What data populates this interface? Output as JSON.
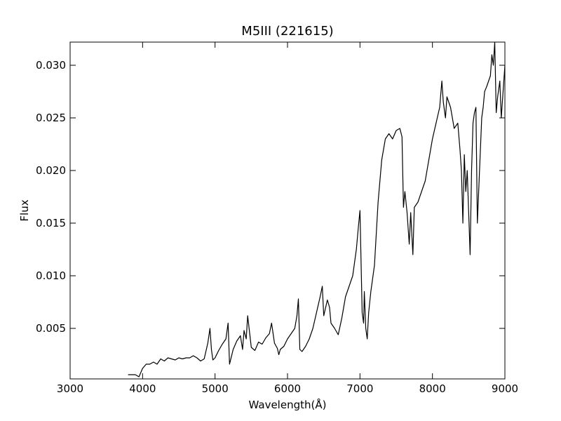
{
  "chart_data": {
    "type": "line",
    "title": "M5III (221615)",
    "xlabel": "Wavelength(Å)",
    "ylabel": "Flux",
    "xlim": [
      3000,
      9000
    ],
    "ylim": [
      0.0002,
      0.0322
    ],
    "x_ticks": [
      3000,
      4000,
      5000,
      6000,
      7000,
      8000,
      9000
    ],
    "y_ticks": [
      0.005,
      0.01,
      0.015,
      0.02,
      0.025,
      0.03
    ],
    "x_tick_labels": [
      "3000",
      "4000",
      "5000",
      "6000",
      "7000",
      "8000",
      "9000"
    ],
    "y_tick_labels": [
      "0.005",
      "0.010",
      "0.015",
      "0.020",
      "0.025",
      "0.030"
    ],
    "grid": false,
    "line_color": "#000000",
    "series": [
      {
        "x": [
          3800,
          3900,
          3950,
          4000,
          4050,
          4100,
          4150,
          4200,
          4250,
          4300,
          4350,
          4400,
          4450,
          4500,
          4550,
          4600,
          4650,
          4700,
          4750,
          4800,
          4850,
          4880,
          4900,
          4930,
          4950,
          4970,
          5000,
          5050,
          5100,
          5150,
          5180,
          5200,
          5250,
          5300,
          5350,
          5380,
          5400,
          5430,
          5450,
          5500,
          5550,
          5600,
          5650,
          5700,
          5750,
          5780,
          5820,
          5860,
          5880,
          5900,
          5950,
          6000,
          6050,
          6100,
          6130,
          6150,
          6170,
          6200,
          6250,
          6300,
          6350,
          6400,
          6450,
          6480,
          6500,
          6550,
          6580,
          6600,
          6650,
          6700,
          6750,
          6800,
          6850,
          6900,
          6950,
          6980,
          7000,
          7030,
          7050,
          7060,
          7080,
          7100,
          7120,
          7150,
          7200,
          7250,
          7300,
          7350,
          7400,
          7450,
          7500,
          7550,
          7580,
          7600,
          7620,
          7650,
          7680,
          7700,
          7730,
          7750,
          7800,
          7850,
          7900,
          7950,
          8000,
          8050,
          8100,
          8130,
          8150,
          8180,
          8200,
          8250,
          8300,
          8350,
          8380,
          8400,
          8420,
          8440,
          8460,
          8480,
          8500,
          8520,
          8540,
          8560,
          8580,
          8600,
          8620,
          8650,
          8680,
          8700,
          8720,
          8750,
          8800,
          8820,
          8840,
          8860,
          8880,
          8900,
          8930,
          8950,
          9000
        ],
        "values": [
          0.0006,
          0.0006,
          0.0004,
          0.0012,
          0.0016,
          0.0016,
          0.0018,
          0.0016,
          0.0021,
          0.0019,
          0.0022,
          0.0021,
          0.002,
          0.0022,
          0.0021,
          0.0022,
          0.0022,
          0.0024,
          0.0022,
          0.0019,
          0.0021,
          0.003,
          0.0036,
          0.005,
          0.003,
          0.002,
          0.0022,
          0.0029,
          0.0035,
          0.004,
          0.0055,
          0.0016,
          0.003,
          0.0038,
          0.0043,
          0.003,
          0.0048,
          0.004,
          0.0062,
          0.0032,
          0.0029,
          0.0037,
          0.0035,
          0.0041,
          0.0045,
          0.0055,
          0.0036,
          0.0031,
          0.0025,
          0.003,
          0.0033,
          0.004,
          0.0045,
          0.005,
          0.0062,
          0.0078,
          0.003,
          0.0028,
          0.0033,
          0.004,
          0.005,
          0.0065,
          0.008,
          0.009,
          0.0062,
          0.0077,
          0.007,
          0.0055,
          0.005,
          0.0044,
          0.006,
          0.008,
          0.009,
          0.01,
          0.0125,
          0.0148,
          0.0162,
          0.0065,
          0.0055,
          0.0085,
          0.005,
          0.004,
          0.0065,
          0.0085,
          0.011,
          0.017,
          0.021,
          0.023,
          0.0235,
          0.023,
          0.0238,
          0.024,
          0.0232,
          0.0165,
          0.018,
          0.016,
          0.013,
          0.016,
          0.012,
          0.0165,
          0.017,
          0.018,
          0.019,
          0.021,
          0.023,
          0.0245,
          0.026,
          0.0285,
          0.0265,
          0.025,
          0.027,
          0.026,
          0.024,
          0.0245,
          0.022,
          0.02,
          0.015,
          0.0215,
          0.018,
          0.02,
          0.016,
          0.012,
          0.02,
          0.0245,
          0.0255,
          0.026,
          0.015,
          0.02,
          0.025,
          0.026,
          0.0275,
          0.028,
          0.029,
          0.031,
          0.03,
          0.0322,
          0.0255,
          0.027,
          0.0285,
          0.025,
          0.03
        ]
      }
    ]
  }
}
